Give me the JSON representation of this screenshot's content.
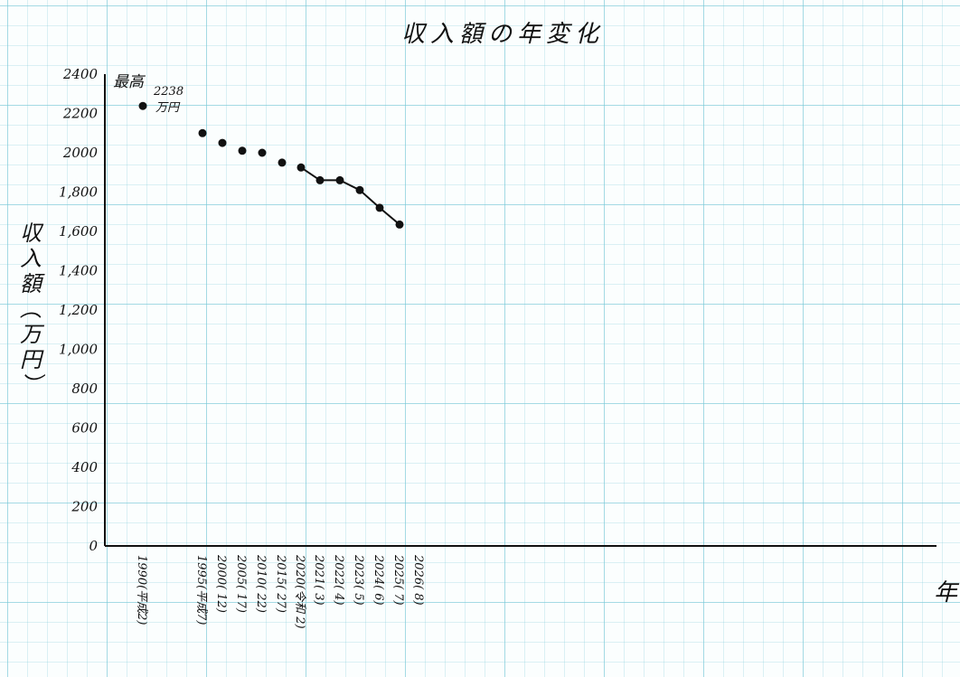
{
  "chart_data": {
    "type": "scatter",
    "title": "収入額の年変化",
    "ylabel": "収入額(万円)",
    "xlabel": "年",
    "ylim": [
      0,
      2400
    ],
    "yticks": [
      "0",
      "200",
      "400",
      "600",
      "800",
      "1,000",
      "1,200",
      "1,400",
      "1,600",
      "1,800",
      "2000",
      "2200",
      "2400"
    ],
    "x_labels": [
      "1990(平成2)",
      "1995(平成7)",
      "2000(  12)",
      "2005(  17)",
      "2010(  22)",
      "2015(  27)",
      "2020(令和 2)",
      "2021(  3)",
      "2022(  4)",
      "2023(  5)",
      "2024(  6)",
      "2025(  7)",
      "2026(  8)"
    ],
    "points": [
      {
        "label": "1990",
        "value": 2238
      },
      {
        "label": "1995",
        "value": 2100
      },
      {
        "label": "2000",
        "value": 2050
      },
      {
        "label": "2005",
        "value": 2010
      },
      {
        "label": "2010",
        "value": 2000
      },
      {
        "label": "2015",
        "value": 1950
      },
      {
        "label": "2020",
        "value": 1925
      },
      {
        "label": "2021",
        "value": 1860
      },
      {
        "label": "2022",
        "value": 1860
      },
      {
        "label": "2023",
        "value": 1810
      },
      {
        "label": "2024",
        "value": 1720
      },
      {
        "label": "2025",
        "value": 1635
      }
    ],
    "line_from_label": "2020",
    "annotation": {
      "text_main": "最高",
      "text_value": "2238",
      "text_unit": "万円"
    },
    "grid": true
  }
}
